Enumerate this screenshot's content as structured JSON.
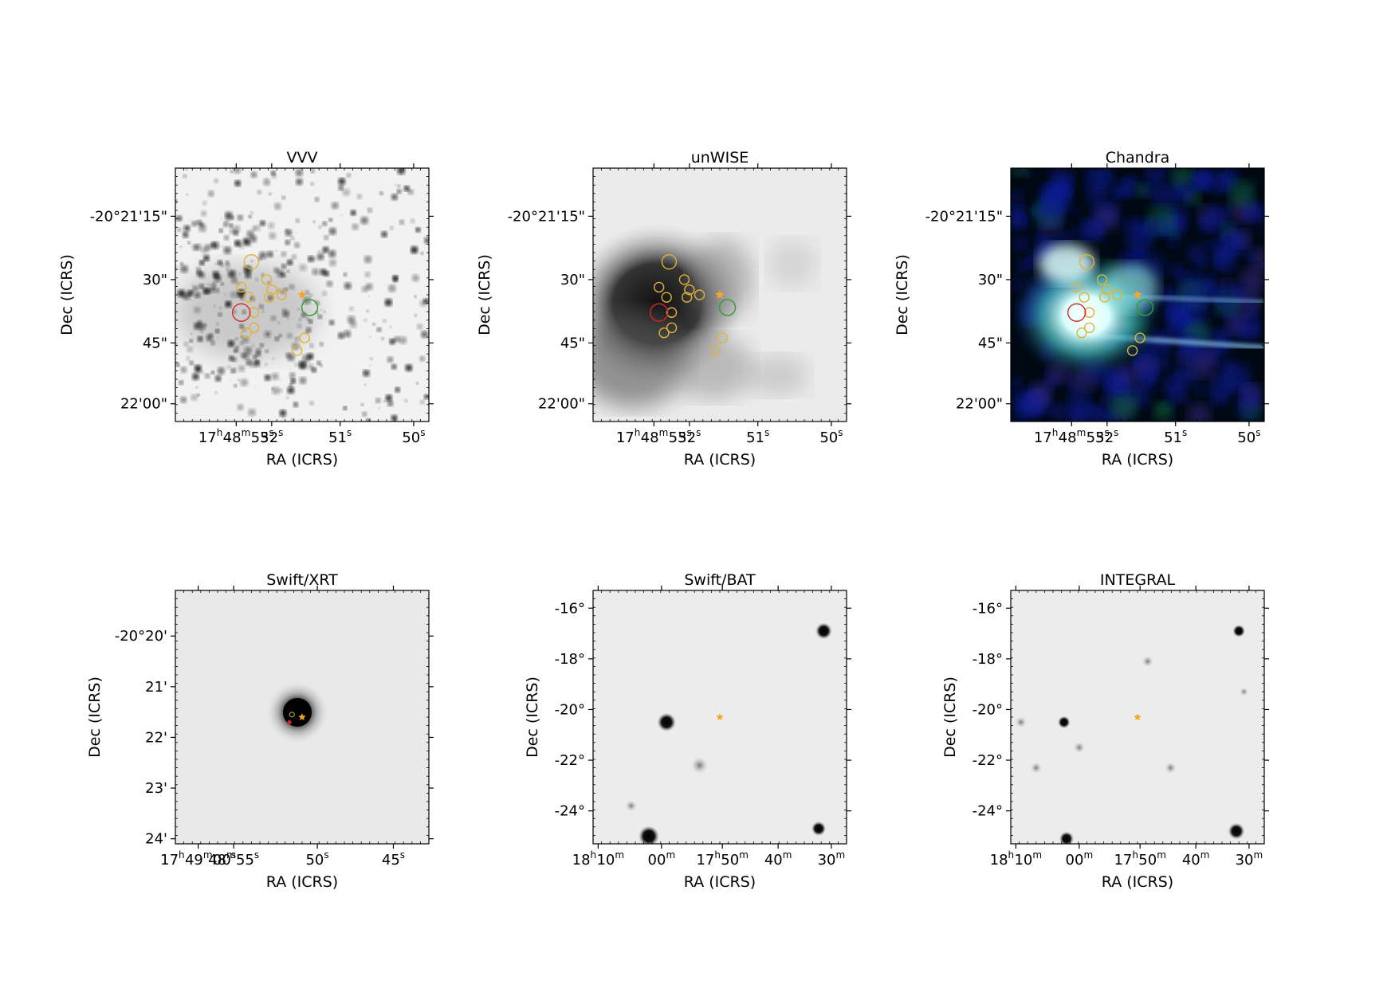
{
  "panels": [
    {
      "title": "VVV",
      "image": "grayscale-star-field",
      "ylabel": "Dec (ICRS)",
      "xlabel": "RA (ICRS)",
      "yticks": [
        "-20°21'15\"",
        "30\"",
        "45\"",
        "22'00\""
      ],
      "xticks": [
        {
          "main": "17",
          "sup1": "h",
          "mid": "48",
          "sup2": "m",
          "end": "53",
          "sup3": "s"
        },
        {
          "main": "52",
          "sup3": "s"
        },
        {
          "main": "51",
          "sup3": "s"
        },
        {
          "main": "50",
          "sup3": "s"
        }
      ]
    },
    {
      "title": "unWISE",
      "image": "grayscale-diffuse-infrared",
      "ylabel": "Dec (ICRS)",
      "xlabel": "RA (ICRS)",
      "yticks": [
        "-20°21'15\"",
        "30\"",
        "45\"",
        "22'00\""
      ],
      "xticks": [
        {
          "main": "17",
          "sup1": "h",
          "mid": "48",
          "sup2": "m",
          "end": "53",
          "sup3": "s"
        },
        {
          "main": "52",
          "sup3": "s"
        },
        {
          "main": "51",
          "sup3": "s"
        },
        {
          "main": "50",
          "sup3": "s"
        }
      ]
    },
    {
      "title": "Chandra",
      "image": "rgb-xray-composite",
      "ylabel": "Dec (ICRS)",
      "xlabel": "RA (ICRS)",
      "yticks": [
        "-20°21'15\"",
        "30\"",
        "45\"",
        "22'00\""
      ],
      "xticks": [
        {
          "main": "17",
          "sup1": "h",
          "mid": "48",
          "sup2": "m",
          "end": "53",
          "sup3": "s"
        },
        {
          "main": "52",
          "sup3": "s"
        },
        {
          "main": "51",
          "sup3": "s"
        },
        {
          "main": "50",
          "sup3": "s"
        }
      ]
    },
    {
      "title": "Swift/XRT",
      "image": "grayscale-point-source",
      "ylabel": "Dec (ICRS)",
      "xlabel": "RA (ICRS)",
      "yticks": [
        "-20°20'",
        "21'",
        "22'",
        "23'",
        "24'"
      ],
      "xticks": [
        {
          "main": "17",
          "sup1": "h",
          "mid": "49",
          "sup2": "m",
          "end": "00",
          "sup3": "s"
        },
        {
          "main": "48",
          "sup2": "m",
          "end": "55",
          "sup3": "s"
        },
        {
          "main": "50",
          "sup3": "s"
        },
        {
          "main": "45",
          "sup3": "s"
        }
      ]
    },
    {
      "title": "Swift/BAT",
      "image": "grayscale-wide-field",
      "ylabel": "Dec (ICRS)",
      "xlabel": "RA (ICRS)",
      "yticks": [
        "-16°",
        "-18°",
        "-20°",
        "-22°",
        "-24°"
      ],
      "xticks": [
        {
          "main": "18",
          "sup1": "h",
          "mid": "10",
          "sup2": "m"
        },
        {
          "main": "00",
          "sup2": "m"
        },
        {
          "main": "17",
          "sup1": "h",
          "mid": "50",
          "sup2": "m"
        },
        {
          "main": "40",
          "sup2": "m"
        },
        {
          "main": "30",
          "sup2": "m"
        }
      ]
    },
    {
      "title": "INTEGRAL",
      "image": "grayscale-wide-field",
      "ylabel": "Dec (ICRS)",
      "xlabel": "RA (ICRS)",
      "yticks": [
        "-16°",
        "-18°",
        "-20°",
        "-22°",
        "-24°"
      ],
      "xticks": [
        {
          "main": "18",
          "sup1": "h",
          "mid": "10",
          "sup2": "m"
        },
        {
          "main": "00",
          "sup2": "m"
        },
        {
          "main": "17",
          "sup1": "h",
          "mid": "50",
          "sup2": "m"
        },
        {
          "main": "40",
          "sup2": "m"
        },
        {
          "main": "30",
          "sup2": "m"
        }
      ]
    }
  ],
  "marker_colors": {
    "target_star": "#f5a623",
    "candidate_circles": "#e0b23a",
    "red_circle": "#d62728",
    "green_circle": "#2ca02c"
  }
}
